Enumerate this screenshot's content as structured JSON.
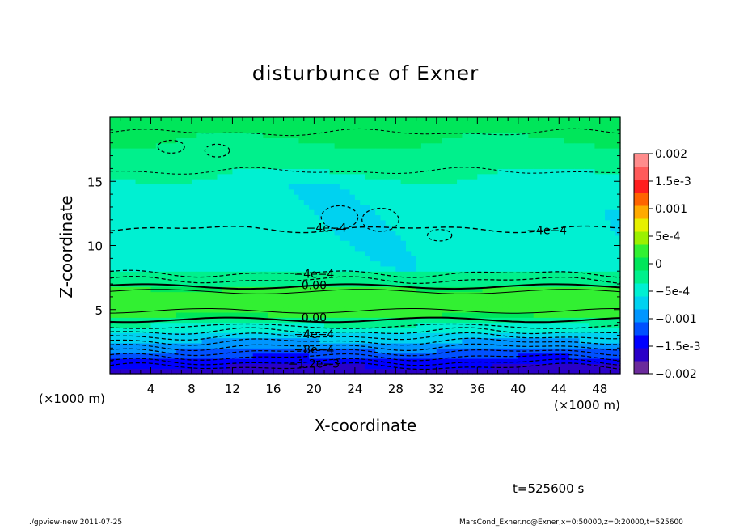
{
  "title": "disturbunce of Exner",
  "xlabel": "X-coordinate",
  "ylabel": "Z-coordinate",
  "x_unit_left": "(×1000 m)",
  "x_unit_right": "(×1000 m)",
  "time_label": "t=525600 s",
  "footer_left": "./gpview-new   2011-07-25",
  "footer_right": "MarsCond_Exner.nc@Exner,x=0:50000,z=0:20000,t=525600",
  "chart_data": {
    "type": "heatmap",
    "title": "disturbunce of Exner",
    "xlabel": "X-coordinate",
    "ylabel": "Z-coordinate",
    "xlim": [
      0,
      50
    ],
    "ylim": [
      0,
      20
    ],
    "x_ticks": [
      "4",
      "8",
      "12",
      "16",
      "20",
      "24",
      "28",
      "32",
      "36",
      "40",
      "44",
      "48"
    ],
    "y_ticks": [
      "5",
      "10",
      "15"
    ],
    "colorbar": {
      "range": [
        -0.002,
        0.002
      ],
      "tick_labels": [
        "0.002",
        "1.5e-3",
        "0.001",
        "5e-4",
        "0",
        "−5e-4",
        "−0.001",
        "−1.5e-3",
        "−0.002"
      ],
      "colors": [
        "#6b2a9c",
        "#2a00c8",
        "#0000ff",
        "#0050ff",
        "#0096ff",
        "#00d2f0",
        "#00f0d2",
        "#00f08c",
        "#00e65a",
        "#32f032",
        "#9bf000",
        "#e6f000",
        "#ffaa00",
        "#ff6400",
        "#ff1e1e",
        "#ff5a5a",
        "#ff8c8c"
      ]
    },
    "contour_labels": [
      {
        "text": "−4e−4",
        "x": 21.2,
        "z": 11.4
      },
      {
        "text": "−4e−4",
        "x": 42.8,
        "z": 11.2
      },
      {
        "text": "−4e−4",
        "x": 20.0,
        "z": 7.8
      },
      {
        "text": "0.00",
        "x": 20.0,
        "z": 6.9
      },
      {
        "text": "0.00",
        "x": 20.0,
        "z": 4.4
      },
      {
        "text": "−4e−4",
        "x": 20.0,
        "z": 3.1
      },
      {
        "text": "−8e−4",
        "x": 20.0,
        "z": 1.9
      },
      {
        "text": "−1.2e−3",
        "x": 20.0,
        "z": 0.8
      }
    ]
  }
}
